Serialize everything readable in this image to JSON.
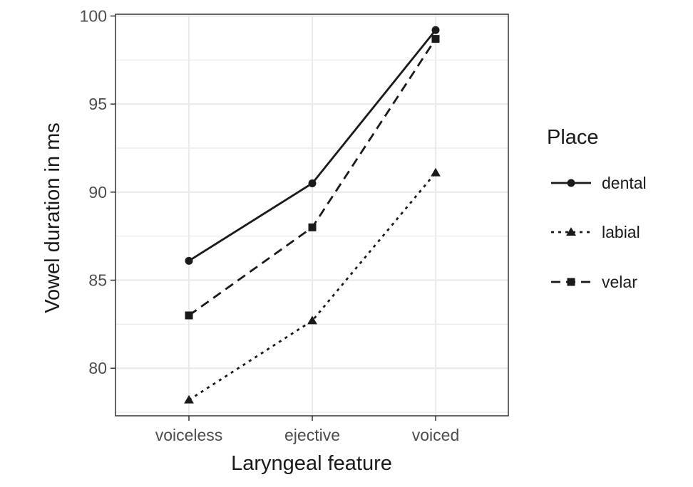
{
  "chart_data": {
    "type": "line",
    "title": "",
    "xlabel": "Laryngeal feature",
    "ylabel": "Vowel duration in ms",
    "categories": [
      "voiceless",
      "ejective",
      "voiced"
    ],
    "ylim": [
      77.3,
      100.1
    ],
    "yticks": [
      80,
      85,
      90,
      95,
      100
    ],
    "grid": true,
    "legend": {
      "title": "Place",
      "placement": "right"
    },
    "series": [
      {
        "name": "dental",
        "values": [
          86.1,
          90.5,
          99.2
        ],
        "linestyle": "solid",
        "marker": "circle"
      },
      {
        "name": "labial",
        "values": [
          78.2,
          82.7,
          91.1
        ],
        "linestyle": "dotted",
        "marker": "triangle"
      },
      {
        "name": "velar",
        "values": [
          83.0,
          88.0,
          98.7
        ],
        "linestyle": "dashed",
        "marker": "square"
      }
    ],
    "colors": {
      "line": "#1a1a1a",
      "grid": "#ebebeb",
      "panel_border": "#333333"
    }
  }
}
